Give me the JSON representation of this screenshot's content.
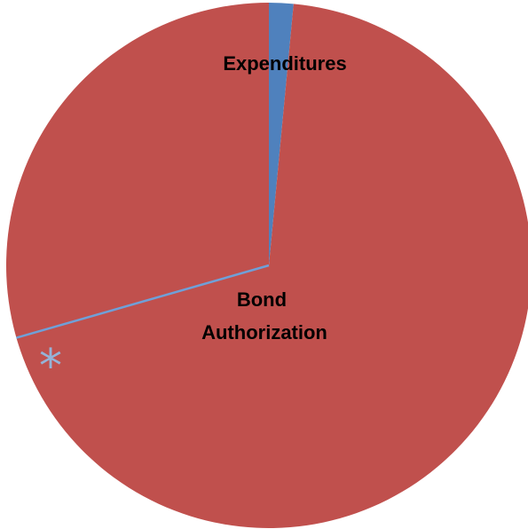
{
  "chart_data": {
    "type": "pie",
    "title": "",
    "slices": [
      {
        "label": "Expenditures",
        "value": 1.5,
        "color": "#4f81bd"
      },
      {
        "label": "Bond Authorization",
        "label_lines": [
          "Bond",
          "Authorization"
        ],
        "value": 98.5,
        "color": "#c0504d"
      }
    ],
    "separator_line": {
      "color": "#6fa0d8",
      "angle_deg_from_top_clockwise": 254
    },
    "annotations": [
      {
        "text": "*",
        "color": "#95b3d7"
      }
    ],
    "legend": "none"
  }
}
